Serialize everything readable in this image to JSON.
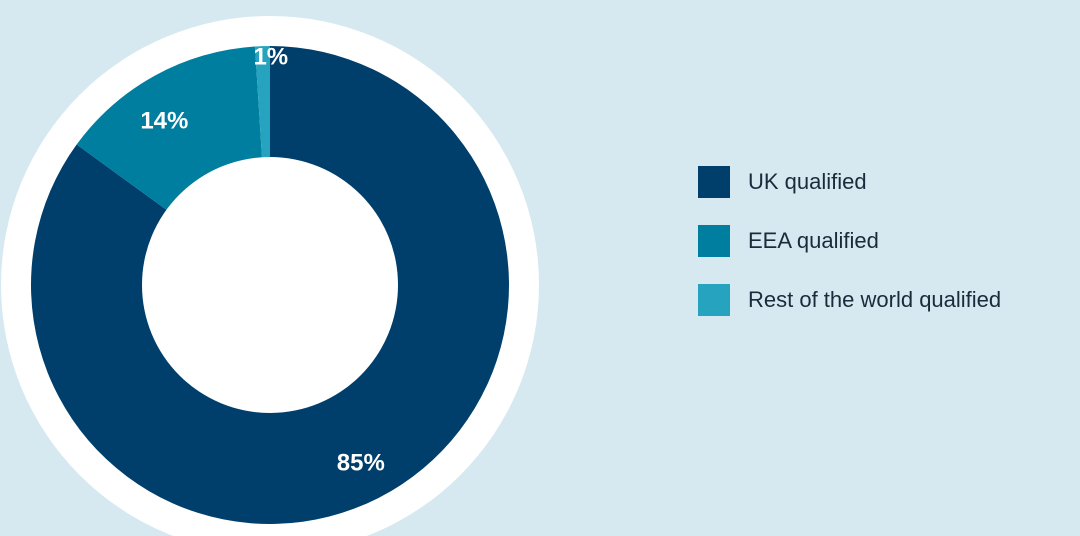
{
  "chart_data": {
    "type": "pie",
    "categories": [
      "UK qualified",
      "EEA qualified",
      "Rest of the world qualified"
    ],
    "values": [
      85,
      14,
      1
    ],
    "data_labels": [
      "85%",
      "14%",
      "1%"
    ],
    "colors": [
      "#003f6b",
      "#007e9f",
      "#26a4bf"
    ],
    "donut": true,
    "legend_position": "right"
  },
  "legend": {
    "items": [
      {
        "label": "UK qualified",
        "color": "#003f6b"
      },
      {
        "label": "EEA qualified",
        "color": "#007e9f"
      },
      {
        "label": "Rest of the world qualified",
        "color": "#26a4bf"
      }
    ]
  },
  "colors": {
    "background": "#d6e9f0",
    "ring": "#ffffff"
  }
}
